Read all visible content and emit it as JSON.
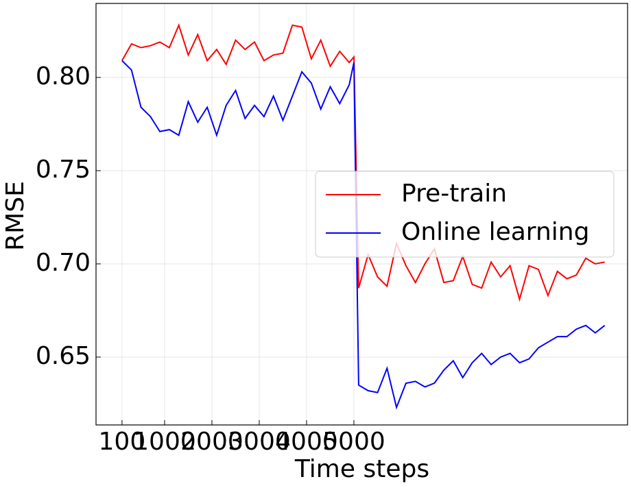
{
  "chart_data": {
    "type": "line",
    "xlabel": "Time steps",
    "ylabel": "RMSE",
    "x": [
      100,
      300,
      500,
      700,
      900,
      1100,
      1300,
      1500,
      1700,
      1900,
      2100,
      2300,
      2500,
      2700,
      2900,
      3100,
      3300,
      3500,
      3700,
      3900,
      4100,
      4300,
      4500,
      4700,
      4900,
      5000,
      5100,
      5300,
      5500,
      5700,
      5900,
      6100,
      6300,
      6500,
      6700,
      6900,
      7100,
      7300,
      7500,
      7700,
      7900,
      8100,
      8300,
      8500,
      8700,
      8900,
      9100,
      9300,
      9500,
      9700,
      9900,
      10100,
      10300
    ],
    "series": [
      {
        "name": "Pre-train",
        "color": "#ff0000",
        "values": [
          0.809,
          0.818,
          0.816,
          0.817,
          0.819,
          0.816,
          0.828,
          0.812,
          0.823,
          0.809,
          0.815,
          0.807,
          0.82,
          0.815,
          0.819,
          0.809,
          0.812,
          0.813,
          0.828,
          0.827,
          0.81,
          0.82,
          0.806,
          0.814,
          0.808,
          0.811,
          0.687,
          0.705,
          0.693,
          0.688,
          0.711,
          0.699,
          0.69,
          0.7,
          0.708,
          0.69,
          0.691,
          0.704,
          0.689,
          0.687,
          0.701,
          0.693,
          0.699,
          0.681,
          0.699,
          0.697,
          0.683,
          0.696,
          0.692,
          0.694,
          0.703,
          0.7,
          0.701
        ]
      },
      {
        "name": "Online learning",
        "color": "#0000ff",
        "values": [
          0.809,
          0.804,
          0.784,
          0.779,
          0.771,
          0.772,
          0.769,
          0.787,
          0.776,
          0.784,
          0.769,
          0.785,
          0.793,
          0.778,
          0.785,
          0.779,
          0.79,
          0.777,
          0.79,
          0.803,
          0.797,
          0.783,
          0.795,
          0.786,
          0.796,
          0.808,
          0.635,
          0.632,
          0.631,
          0.644,
          0.623,
          0.636,
          0.637,
          0.634,
          0.636,
          0.643,
          0.648,
          0.639,
          0.647,
          0.652,
          0.646,
          0.65,
          0.652,
          0.647,
          0.649,
          0.655,
          0.658,
          0.661,
          0.661,
          0.665,
          0.667,
          0.663,
          0.667
        ]
      }
    ],
    "xlim": [
      -449,
      10783
    ],
    "xticks": [
      100,
      1000,
      2000,
      3000,
      4000,
      5000
    ],
    "ylim": [
      0.6136,
      0.8397
    ],
    "yticks": [
      {
        "value": 0.65,
        "label": "0.65"
      },
      {
        "value": 0.7,
        "label": "0.70"
      },
      {
        "value": 0.75,
        "label": "0.75"
      },
      {
        "value": 0.8,
        "label": "0.80"
      }
    ],
    "grid": true,
    "legend": "center right"
  }
}
